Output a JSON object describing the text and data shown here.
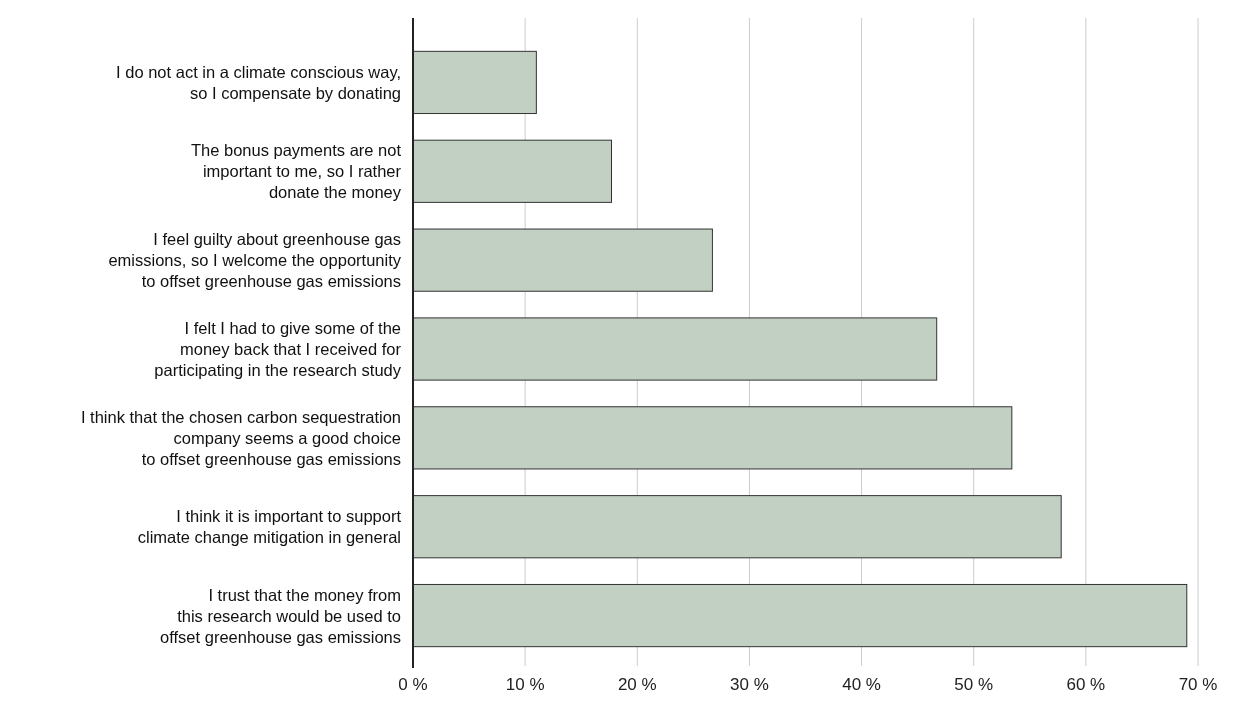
{
  "chart_data": {
    "type": "bar",
    "orientation": "horizontal",
    "categories": [
      "I do not act in a climate conscious way,\nso I compensate by donating",
      "The bonus payments are not\nimportant to me, so I rather\ndonate the money",
      "I feel guilty about greenhouse gas\nemissions, so I welcome the opportunity\nto offset greenhouse gas emissions",
      "I felt I had to give some of the\nmoney back that I received for\nparticipating in the research study",
      "I think that the chosen carbon sequestration\ncompany seems a good choice\nto offset greenhouse gas emissions",
      "I think it is important to support\nclimate change mitigation in general",
      "I trust that the money from\nthis research would be used to\noffset greenhouse gas emissions"
    ],
    "values": [
      11.0,
      17.7,
      26.7,
      46.7,
      53.4,
      57.8,
      69.0
    ],
    "color": "#c2cfc3",
    "xlim": [
      0,
      70
    ],
    "xticks": [
      {
        "value": 0,
        "label": "0 %"
      },
      {
        "value": 10,
        "label": "10 %"
      },
      {
        "value": 20,
        "label": "20 %"
      },
      {
        "value": 30,
        "label": "30 %"
      },
      {
        "value": 40,
        "label": "40 %"
      },
      {
        "value": 50,
        "label": "50 %"
      },
      {
        "value": 60,
        "label": "60 %"
      },
      {
        "value": 70,
        "label": "70 %"
      }
    ],
    "grid": "x"
  }
}
